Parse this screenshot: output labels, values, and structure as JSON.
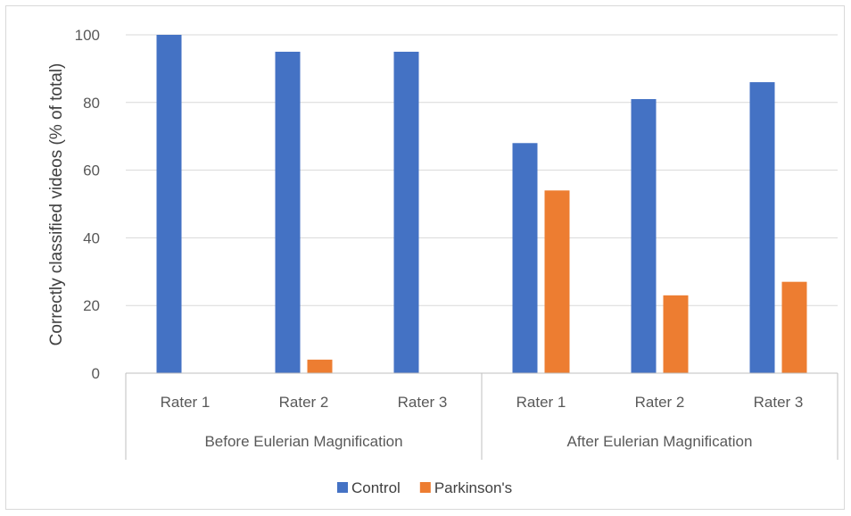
{
  "chart_data": {
    "type": "bar",
    "ylabel": "Correctly classified videos (% of total)",
    "ylim": [
      0,
      100
    ],
    "yticks": [
      0,
      20,
      40,
      60,
      80,
      100
    ],
    "grid": true,
    "legend_position": "bottom",
    "groups": [
      {
        "label": "Before Eulerian Magnification",
        "categories": [
          "Rater 1",
          "Rater 2",
          "Rater 3"
        ]
      },
      {
        "label": "After Eulerian Magnification",
        "categories": [
          "Rater 1",
          "Rater 2",
          "Rater 3"
        ]
      }
    ],
    "series": [
      {
        "name": "Control",
        "color": "#4472C4",
        "values": [
          100,
          95,
          95,
          68,
          81,
          86
        ]
      },
      {
        "name": "Parkinson's",
        "color": "#ED7D31",
        "values": [
          0,
          4,
          0,
          54,
          23,
          27
        ]
      }
    ]
  }
}
